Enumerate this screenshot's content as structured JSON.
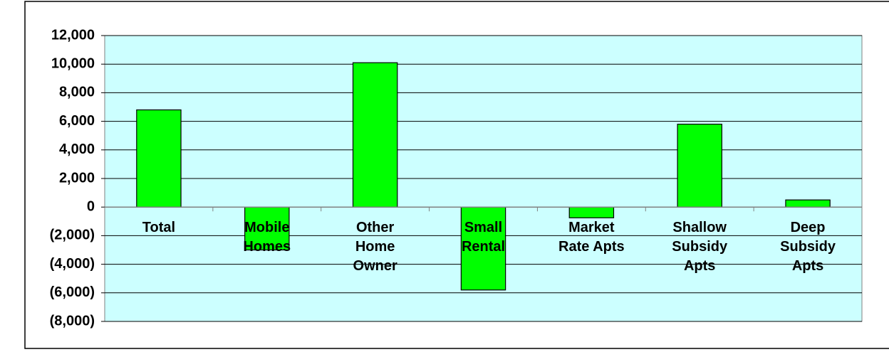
{
  "chart_data": {
    "type": "bar",
    "categories": [
      "Total",
      "Mobile Homes",
      "Other Home Owner",
      "Small Rental",
      "Market Rate Apts",
      "Shallow Subsidy Apts",
      "Deep Subsidy Apts"
    ],
    "values": [
      6800,
      -3000,
      10100,
      -5800,
      -750,
      5800,
      500
    ],
    "color": "#00ff00",
    "ylim": [
      -8000,
      12000
    ],
    "yticks": [
      {
        "value": -8000,
        "label": "(8,000)"
      },
      {
        "value": -6000,
        "label": "(6,000)"
      },
      {
        "value": -4000,
        "label": "(4,000)"
      },
      {
        "value": -2000,
        "label": "(2,000)"
      },
      0,
      {
        "value": 2000,
        "label": "2,000"
      },
      {
        "value": 4000,
        "label": "4,000"
      },
      {
        "value": 6000,
        "label": "6,000"
      },
      {
        "value": 8000,
        "label": "8,000"
      },
      {
        "value": 10000,
        "label": "10,000"
      },
      {
        "value": 12000,
        "label": "12,000"
      }
    ],
    "grid": true
  }
}
